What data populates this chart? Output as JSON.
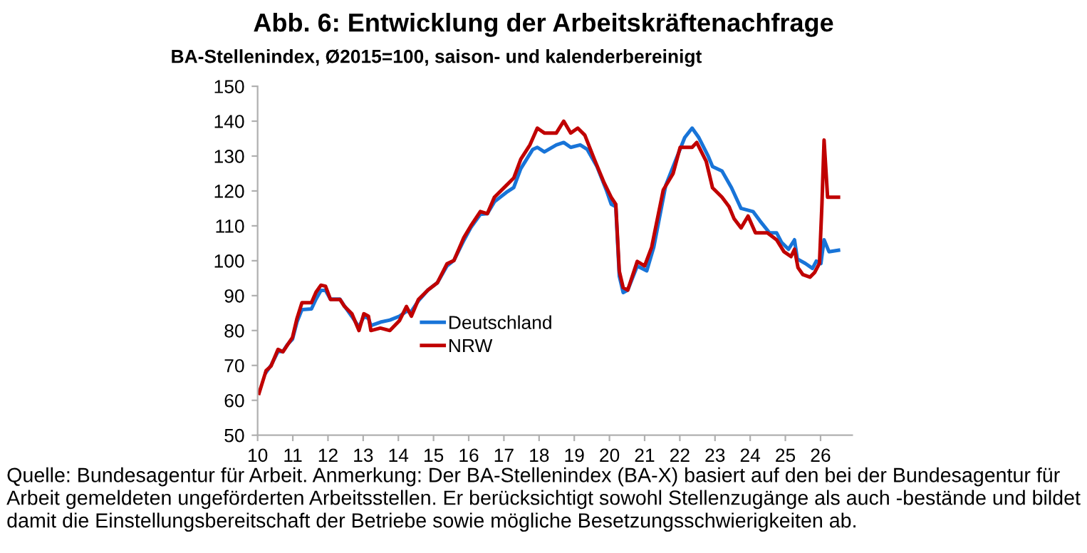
{
  "chart_data": {
    "type": "line",
    "title": "Abb. 6: Entwicklung der Arbeitskräftenachfrage",
    "subtitle": "BA-Stellenindex, Ø2015=100, saison- und kalenderbereinigt",
    "annotations": [
      "Quelle: Bundesagentur für Arbeit. Anmerkung: Der BA-Stellenindex (BA-X) basiert auf den bei der Bundesagentur für Arbeit gemeldeten ungeförderten Arbeitsstellen. Er berücksichtigt sowohl Stellenzugänge als auch -bestände und bildet damit die Einstellungsbereitschaft der Betriebe sowie mögliche Besetzungsschwierigkeiten ab."
    ],
    "xlim": [
      10,
      26.9
    ],
    "xticks": [
      10,
      11,
      12,
      13,
      14,
      15,
      16,
      17,
      18,
      19,
      20,
      21,
      22,
      23,
      24,
      25,
      26
    ],
    "ylim": [
      50,
      150
    ],
    "yticks": [
      50,
      60,
      70,
      80,
      90,
      100,
      110,
      120,
      130,
      140,
      150
    ],
    "grid": false,
    "legend": "bottom left",
    "series": [
      {
        "name": "Deutschland",
        "color": "#1874d8",
        "x": [
          10.24,
          10.38,
          10.58,
          10.72,
          10.85,
          10.99,
          11.12,
          11.26,
          11.53,
          11.66,
          11.8,
          11.93,
          12.07,
          12.34,
          12.47,
          12.68,
          12.88,
          13.02,
          13.15,
          13.22,
          13.49,
          13.76,
          14.03,
          14.23,
          14.37,
          14.57,
          14.84,
          15.11,
          15.38,
          15.58,
          15.86,
          16.06,
          16.33,
          16.53,
          16.73,
          17.07,
          17.28,
          17.48,
          17.82,
          17.95,
          18.15,
          18.49,
          18.7,
          18.9,
          19.17,
          19.37,
          19.64,
          19.91,
          20.05,
          20.18,
          20.28,
          20.39,
          20.52,
          20.79,
          21.06,
          21.26,
          21.6,
          21.87,
          22.14,
          22.35,
          22.54,
          22.81,
          22.93,
          23.2,
          23.47,
          23.74,
          24.08,
          24.28,
          24.55,
          24.75,
          24.89,
          25.09,
          25.26,
          25.34,
          25.57,
          25.77,
          25.88,
          26.01,
          26.1,
          26.24,
          26.51
        ],
        "values": [
          68,
          70,
          74,
          74,
          76,
          77.5,
          82.5,
          86,
          86.2,
          89,
          91.5,
          91.5,
          89,
          89,
          87,
          84,
          81,
          84,
          83.5,
          81.4,
          82.4,
          83,
          84.1,
          85.5,
          85.5,
          88.5,
          91.6,
          93.7,
          98.5,
          100.1,
          105.8,
          109.5,
          113.3,
          113.5,
          116.9,
          119.6,
          121,
          126.4,
          131.9,
          132.5,
          131.2,
          133.2,
          133.9,
          132.5,
          133.2,
          131.9,
          127.1,
          120.3,
          116.2,
          115.5,
          95.6,
          90.9,
          91.6,
          98.5,
          97.1,
          103.9,
          121.6,
          128.5,
          135.3,
          138,
          135.3,
          129.9,
          127,
          125.7,
          120.9,
          115,
          114.1,
          111.4,
          108,
          108,
          105.3,
          103.3,
          106,
          100.5,
          99.2,
          97.8,
          99.9,
          99.2,
          106,
          102.6,
          103
        ]
      },
      {
        "name": "NRW",
        "color": "#c00000",
        "x": [
          10.04,
          10.24,
          10.38,
          10.58,
          10.72,
          10.85,
          10.99,
          11.12,
          11.26,
          11.53,
          11.66,
          11.8,
          11.93,
          12.07,
          12.34,
          12.47,
          12.68,
          12.88,
          13.02,
          13.15,
          13.22,
          13.49,
          13.76,
          14.03,
          14.23,
          14.37,
          14.57,
          14.84,
          15.11,
          15.38,
          15.58,
          15.86,
          16.06,
          16.33,
          16.53,
          16.73,
          17.07,
          17.28,
          17.48,
          17.74,
          17.95,
          18.15,
          18.49,
          18.7,
          18.9,
          19.1,
          19.3,
          19.57,
          19.85,
          20.05,
          20.18,
          20.28,
          20.39,
          20.52,
          20.79,
          21.0,
          21.2,
          21.53,
          21.81,
          22.01,
          22.35,
          22.48,
          22.75,
          22.93,
          23.2,
          23.4,
          23.54,
          23.74,
          23.94,
          24.15,
          24.49,
          24.75,
          24.96,
          25.16,
          25.26,
          25.36,
          25.5,
          25.7,
          25.83,
          25.97,
          26.04,
          26.1,
          26.2,
          26.51
        ],
        "values": [
          62,
          68.5,
          69.8,
          74.6,
          73.9,
          75.9,
          78,
          83.5,
          88,
          88,
          91,
          93,
          92.7,
          88.9,
          88.9,
          86.9,
          84.8,
          80,
          84.8,
          84.1,
          80,
          80.7,
          80,
          82.8,
          86.9,
          84.1,
          88.9,
          91.6,
          93.7,
          99.1,
          100.1,
          106.6,
          110,
          114.1,
          113.5,
          118.2,
          121.6,
          123.7,
          129.1,
          133.2,
          138,
          136.6,
          136.6,
          140,
          136.6,
          138,
          136,
          129.1,
          122.3,
          118.2,
          116.2,
          97,
          92.3,
          91.6,
          99.8,
          98.5,
          103.9,
          120.3,
          125,
          132.5,
          132.5,
          133.9,
          128.5,
          120.9,
          118.2,
          115.5,
          112.1,
          109.4,
          112.8,
          108,
          108,
          106,
          102.6,
          101.2,
          103.3,
          98,
          96,
          95.3,
          96.6,
          99.3,
          116.3,
          134.6,
          118.2,
          118.2
        ]
      }
    ]
  }
}
